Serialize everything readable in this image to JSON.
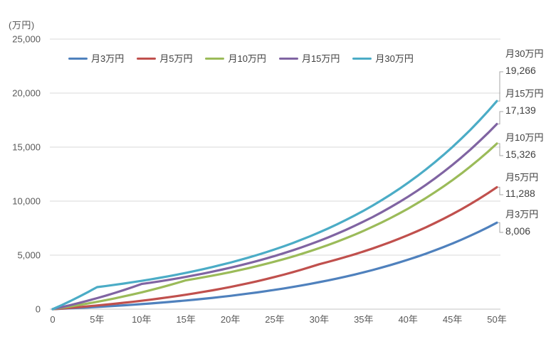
{
  "chart_data": {
    "type": "line",
    "title": "",
    "y_axis_unit": "(万円)",
    "xlabel": "",
    "ylabel": "",
    "xlim": [
      0,
      50
    ],
    "ylim": [
      0,
      25000
    ],
    "x_step_years": 1,
    "x_tick_years": [
      0,
      5,
      10,
      15,
      20,
      25,
      30,
      35,
      40,
      45,
      50
    ],
    "x_tick_labels": [
      "0",
      "5年",
      "10年",
      "15年",
      "20年",
      "25年",
      "30年",
      "35年",
      "40年",
      "45年",
      "50年"
    ],
    "y_ticks": [
      0,
      5000,
      10000,
      15000,
      20000,
      25000
    ],
    "y_tick_labels": [
      "0",
      "5,000",
      "10,000",
      "15,000",
      "20,000",
      "25,000"
    ],
    "grid": "horizontal",
    "legend_position": "top",
    "end_labels_order_top_to_bottom": [
      "月30万円",
      "月15万円",
      "月10万円",
      "月5万円",
      "月3万円"
    ],
    "series": [
      {
        "name": "月3万円",
        "color": "#4F81BD",
        "end_value_label": "8,006",
        "values": [
          0,
          37,
          76,
          116,
          159,
          204,
          251,
          301,
          353,
          408,
          466,
          527,
          590,
          657,
          728,
          802,
          880,
          962,
          1048,
          1138,
          1233,
          1333,
          1438,
          1549,
          1665,
          1787,
          1915,
          2050,
          2191,
          2340,
          2497,
          2661,
          2834,
          3016,
          3207,
          3408,
          3620,
          3842,
          4075,
          4320,
          4578,
          4849,
          5134,
          5434,
          5748,
          6079,
          6427,
          6793,
          7177,
          7581,
          8006
        ]
      },
      {
        "name": "月5万円",
        "color": "#C0504D",
        "end_value_label": "11,288",
        "values": [
          0,
          61,
          126,
          194,
          265,
          340,
          419,
          502,
          589,
          680,
          776,
          878,
          984,
          1096,
          1213,
          1336,
          1466,
          1603,
          1746,
          1897,
          2055,
          2222,
          2397,
          2581,
          2774,
          2978,
          3191,
          3416,
          3652,
          3900,
          4161,
          4374,
          4598,
          4833,
          5081,
          5341,
          5614,
          5901,
          6203,
          6520,
          6854,
          7204,
          7573,
          7960,
          8368,
          8796,
          9246,
          9719,
          10216,
          10739,
          11288
        ]
      },
      {
        "name": "月10万円",
        "color": "#9BBB59",
        "end_value_label": "15,326",
        "values": [
          0,
          123,
          252,
          388,
          530,
          680,
          838,
          1003,
          1177,
          1360,
          1553,
          1755,
          1968,
          2191,
          2426,
          2673,
          2810,
          2953,
          3105,
          3263,
          3430,
          3606,
          3790,
          3984,
          4188,
          4402,
          4628,
          4864,
          5113,
          5375,
          5650,
          5939,
          6243,
          6562,
          6898,
          7251,
          7622,
          8011,
          8421,
          8852,
          9305,
          9781,
          10282,
          10808,
          11361,
          11942,
          12553,
          13195,
          13870,
          14580,
          15326
        ]
      },
      {
        "name": "月15万円",
        "color": "#8064A2",
        "end_value_label": "17,139",
        "values": [
          0,
          184,
          378,
          581,
          795,
          1020,
          1257,
          1505,
          1766,
          2041,
          2329,
          2448,
          2574,
          2705,
          2844,
          2989,
          3142,
          3303,
          3472,
          3650,
          3836,
          4032,
          4239,
          4456,
          4684,
          4923,
          5175,
          5440,
          5718,
          6011,
          6318,
          6641,
          6981,
          7338,
          7714,
          8109,
          8523,
          8959,
          9418,
          9900,
          10406,
          10938,
          11498,
          12086,
          12705,
          13355,
          14038,
          14756,
          15511,
          16305,
          17139
        ]
      },
      {
        "name": "月30万円",
        "color": "#4BACC6",
        "end_value_label": "19,266",
        "values": [
          0,
          368,
          756,
          1163,
          1590,
          2040,
          2145,
          2254,
          2370,
          2491,
          2618,
          2752,
          2893,
          3041,
          3197,
          3360,
          3532,
          3713,
          3903,
          4103,
          4312,
          4533,
          4765,
          5009,
          5265,
          5534,
          5817,
          6115,
          6428,
          6757,
          7102,
          7466,
          7848,
          8249,
          8671,
          9115,
          9581,
          10071,
          10587,
          11128,
          11697,
          12296,
          12925,
          13586,
          14281,
          15012,
          15780,
          16587,
          17436,
          18328,
          19266
        ]
      }
    ]
  }
}
